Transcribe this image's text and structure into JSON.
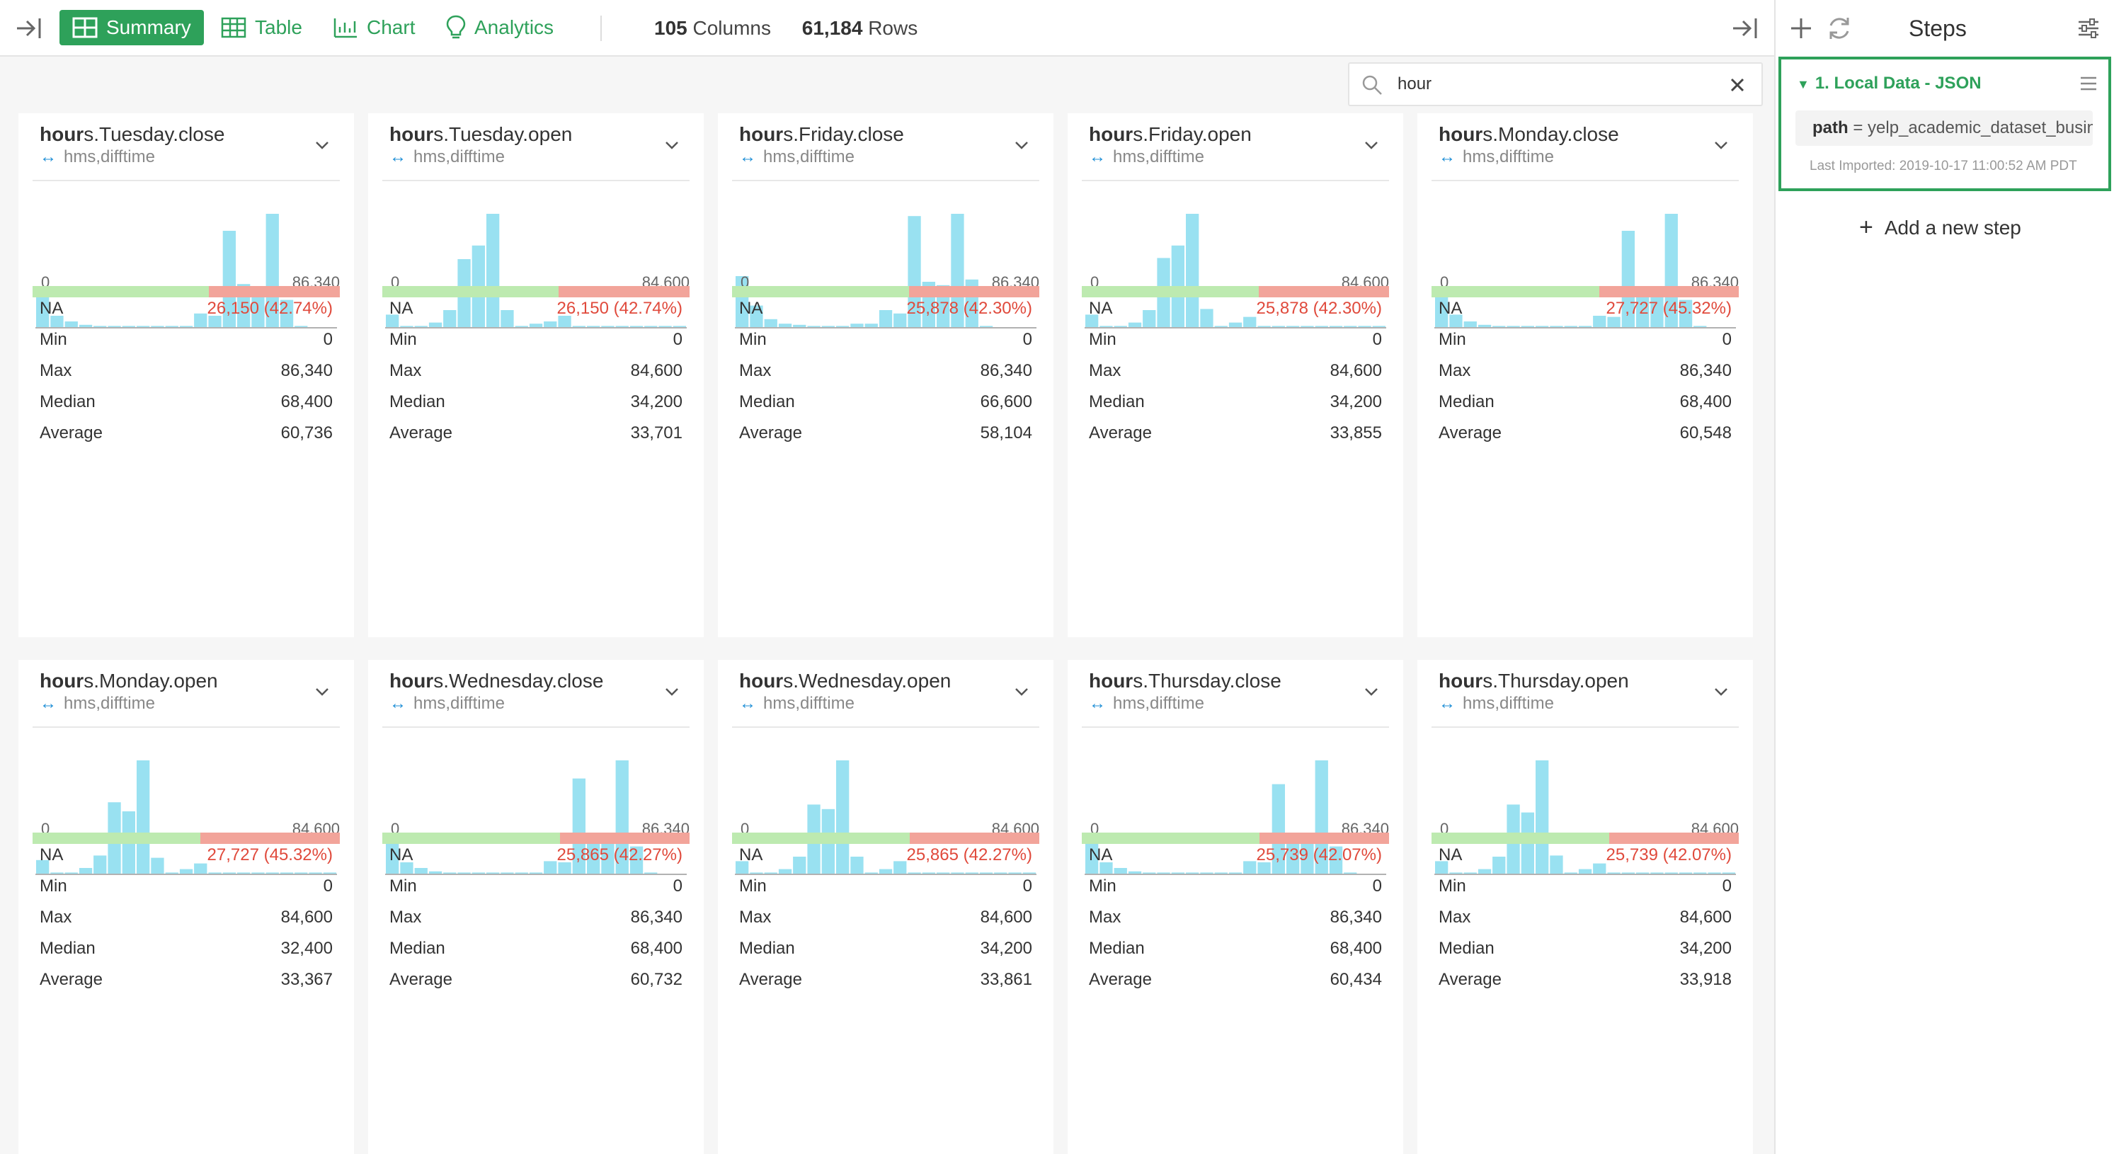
{
  "toolbar": {
    "views": [
      {
        "label": "Summary",
        "icon": "summary-grid-icon",
        "active": true
      },
      {
        "label": "Table",
        "icon": "table-icon",
        "active": false
      },
      {
        "label": "Chart",
        "icon": "chart-icon",
        "active": false
      },
      {
        "label": "Analytics",
        "icon": "lightbulb-icon",
        "active": false
      }
    ],
    "columns_count": "105",
    "columns_label": "Columns",
    "rows_count": "61,184",
    "rows_label": "Rows"
  },
  "search": {
    "value": "hour"
  },
  "steps_panel": {
    "title": "Steps",
    "step": {
      "title": "1. Local Data - JSON",
      "param_key": "path",
      "param_value": " = yelp_academic_dataset_business.json",
      "last_imported": "Last Imported: 2019-10-17 11:00:52 AM PDT"
    },
    "add_step_label": "Add a new step"
  },
  "colors": {
    "accent": "#2ea15a",
    "bar": "#99e1f1",
    "na_ok": "#bdeab0",
    "na_bad": "#f2a49a",
    "na_text": "#e04a3c"
  },
  "stat_labels": [
    "NA",
    "Min",
    "Max",
    "Median",
    "Average"
  ],
  "cards": [
    {
      "prefix": "hour",
      "rest": "s.Tuesday.close",
      "type": "hms,difftime",
      "axis_min": "0",
      "axis_max": "86,340",
      "na_ratio": 0.5726,
      "stats": [
        "26,150 (42.74%)",
        "0",
        "86,340",
        "68,400",
        "60,736"
      ],
      "chart_data": {
        "type": "bar",
        "values": [
          33,
          10,
          5,
          2,
          1,
          1,
          1,
          1,
          1,
          1,
          1,
          12,
          10,
          85,
          38,
          33,
          100,
          24,
          1,
          0,
          0
        ]
      }
    },
    {
      "prefix": "hour",
      "rest": "s.Tuesday.open",
      "type": "hms,difftime",
      "axis_min": "0",
      "axis_max": "84,600",
      "na_ratio": 0.5726,
      "stats": [
        "26,150 (42.74%)",
        "0",
        "84,600",
        "34,200",
        "33,701"
      ],
      "chart_data": {
        "type": "bar",
        "values": [
          11,
          1,
          1,
          4,
          15,
          60,
          72,
          100,
          15,
          1,
          3,
          5,
          10,
          1,
          1,
          1,
          1,
          1,
          1,
          1,
          1
        ]
      }
    },
    {
      "prefix": "hour",
      "rest": "s.Friday.close",
      "type": "hms,difftime",
      "axis_min": "0",
      "axis_max": "86,340",
      "na_ratio": 0.577,
      "stats": [
        "25,878 (42.30%)",
        "0",
        "86,340",
        "66,600",
        "58,104"
      ],
      "chart_data": {
        "type": "bar",
        "values": [
          45,
          19,
          7,
          3,
          2,
          1,
          1,
          1,
          3,
          3,
          15,
          12,
          98,
          40,
          37,
          100,
          42,
          1,
          0,
          0,
          0
        ]
      }
    },
    {
      "prefix": "hour",
      "rest": "s.Friday.open",
      "type": "hms,difftime",
      "axis_min": "0",
      "axis_max": "84,600",
      "na_ratio": 0.577,
      "stats": [
        "25,878 (42.30%)",
        "0",
        "84,600",
        "34,200",
        "33,855"
      ],
      "chart_data": {
        "type": "bar",
        "values": [
          11,
          1,
          1,
          4,
          15,
          61,
          72,
          100,
          16,
          1,
          4,
          9,
          1,
          1,
          1,
          1,
          1,
          1,
          1,
          1,
          1
        ]
      }
    },
    {
      "prefix": "hour",
      "rest": "s.Monday.close",
      "type": "hms,difftime",
      "axis_min": "0",
      "axis_max": "86,340",
      "na_ratio": 0.5468,
      "stats": [
        "27,727 (45.32%)",
        "0",
        "86,340",
        "68,400",
        "60,548"
      ],
      "chart_data": {
        "type": "bar",
        "values": [
          34,
          11,
          5,
          2,
          1,
          1,
          1,
          1,
          1,
          1,
          1,
          10,
          9,
          85,
          35,
          33,
          100,
          24,
          1,
          0,
          0
        ]
      }
    },
    {
      "prefix": "hour",
      "rest": "s.Monday.open",
      "type": "hms,difftime",
      "axis_min": "0",
      "axis_max": "84,600",
      "na_ratio": 0.5468,
      "stats": [
        "27,727 (45.32%)",
        "0",
        "84,600",
        "32,400",
        "33,367"
      ],
      "chart_data": {
        "type": "bar",
        "values": [
          12,
          1,
          1,
          5,
          16,
          63,
          55,
          100,
          14,
          1,
          4,
          9,
          1,
          1,
          1,
          1,
          1,
          1,
          1,
          1,
          1
        ]
      }
    },
    {
      "prefix": "hour",
      "rest": "s.Wednesday.close",
      "type": "hms,difftime",
      "axis_min": "0",
      "axis_max": "86,340",
      "na_ratio": 0.5773,
      "stats": [
        "25,865 (42.27%)",
        "0",
        "86,340",
        "68,400",
        "60,732"
      ],
      "chart_data": {
        "type": "bar",
        "values": [
          33,
          10,
          5,
          2,
          1,
          1,
          1,
          1,
          1,
          1,
          1,
          11,
          10,
          84,
          35,
          33,
          100,
          24,
          1,
          0,
          0
        ]
      }
    },
    {
      "prefix": "hour",
      "rest": "s.Wednesday.open",
      "type": "hms,difftime",
      "axis_min": "0",
      "axis_max": "84,600",
      "na_ratio": 0.5773,
      "stats": [
        "25,865 (42.27%)",
        "0",
        "84,600",
        "34,200",
        "33,861"
      ],
      "chart_data": {
        "type": "bar",
        "values": [
          11,
          1,
          1,
          4,
          15,
          61,
          57,
          100,
          15,
          1,
          4,
          11,
          1,
          1,
          1,
          1,
          1,
          1,
          1,
          1,
          1
        ]
      }
    },
    {
      "prefix": "hour",
      "rest": "s.Thursday.close",
      "type": "hms,difftime",
      "axis_min": "0",
      "axis_max": "86,340",
      "na_ratio": 0.5793,
      "stats": [
        "25,739 (42.07%)",
        "0",
        "86,340",
        "68,400",
        "60,434"
      ],
      "chart_data": {
        "type": "bar",
        "values": [
          32,
          10,
          5,
          2,
          1,
          1,
          1,
          1,
          1,
          1,
          1,
          11,
          10,
          79,
          36,
          33,
          100,
          24,
          1,
          0,
          0
        ]
      }
    },
    {
      "prefix": "hour",
      "rest": "s.Thursday.open",
      "type": "hms,difftime",
      "axis_min": "0",
      "axis_max": "84,600",
      "na_ratio": 0.5793,
      "stats": [
        "25,739 (42.07%)",
        "0",
        "84,600",
        "34,200",
        "33,918"
      ],
      "chart_data": {
        "type": "bar",
        "values": [
          11,
          1,
          1,
          4,
          15,
          61,
          54,
          100,
          16,
          1,
          4,
          9,
          1,
          1,
          1,
          1,
          1,
          1,
          1,
          1,
          1
        ]
      }
    }
  ]
}
